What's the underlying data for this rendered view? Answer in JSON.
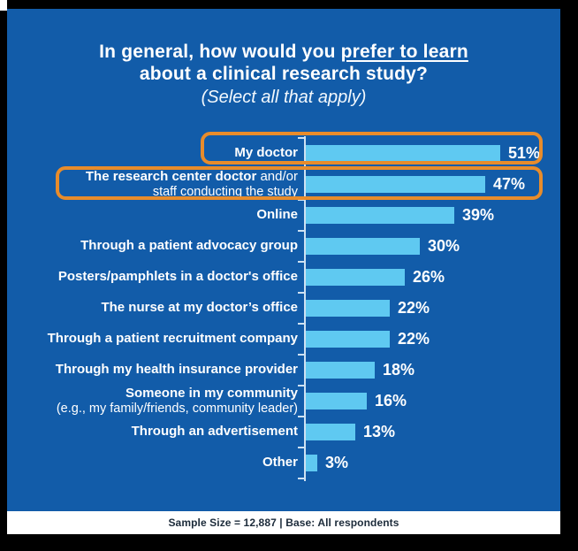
{
  "header": {
    "title_pre": "In general, how would you ",
    "title_underline": "prefer to learn",
    "title_line2": "about a clinical research study?",
    "subtitle": "(Select all that apply)"
  },
  "chart_data": {
    "type": "bar",
    "orientation": "horizontal",
    "title": "In general, how would you prefer to learn about a clinical research study? (Select all that apply)",
    "value_unit": "%",
    "xlim": [
      0,
      60
    ],
    "grid": false,
    "legend": "none",
    "colors": {
      "background": "#125CA9",
      "bar": "#5FC9F1",
      "highlight_outline": "#E88C2B",
      "label_text": "#FFFFFF"
    },
    "highlighted_categories": [
      "My doctor",
      "The research center doctor and/or staff conducting the study"
    ],
    "rows": [
      {
        "label_bold": "My doctor",
        "label_rest": "",
        "label_line2": "",
        "value": 51,
        "value_label": "51%",
        "highlighted": true
      },
      {
        "label_bold": "The research center doctor",
        "label_rest": " and/or",
        "label_line2": "staff conducting the study",
        "value": 47,
        "value_label": "47%",
        "highlighted": true
      },
      {
        "label_bold": "Online",
        "label_rest": "",
        "label_line2": "",
        "value": 39,
        "value_label": "39%",
        "highlighted": false
      },
      {
        "label_bold": "Through a patient advocacy group",
        "label_rest": "",
        "label_line2": "",
        "value": 30,
        "value_label": "30%",
        "highlighted": false
      },
      {
        "label_bold": "Posters/pamphlets in a doctor's office",
        "label_rest": "",
        "label_line2": "",
        "value": 26,
        "value_label": "26%",
        "highlighted": false
      },
      {
        "label_bold": "The nurse at my doctor’s office",
        "label_rest": "",
        "label_line2": "",
        "value": 22,
        "value_label": "22%",
        "highlighted": false
      },
      {
        "label_bold": "Through a patient recruitment company",
        "label_rest": "",
        "label_line2": "",
        "value": 22,
        "value_label": "22%",
        "highlighted": false
      },
      {
        "label_bold": "Through my health insurance provider",
        "label_rest": "",
        "label_line2": "",
        "value": 18,
        "value_label": "18%",
        "highlighted": false
      },
      {
        "label_bold": "Someone in my community",
        "label_rest": "",
        "label_line2": "(e.g., my family/friends, community leader)",
        "value": 16,
        "value_label": "16%",
        "highlighted": false
      },
      {
        "label_bold": "Through an advertisement",
        "label_rest": "",
        "label_line2": "",
        "value": 13,
        "value_label": "13%",
        "highlighted": false
      },
      {
        "label_bold": "Other",
        "label_rest": "",
        "label_line2": "",
        "value": 3,
        "value_label": "3%",
        "highlighted": false
      }
    ]
  },
  "footer": {
    "text": "Sample Size = 12,887 | Base: All respondents"
  }
}
